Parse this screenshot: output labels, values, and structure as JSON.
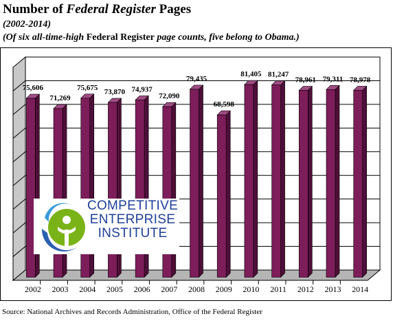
{
  "header": {
    "title_part1": "Number of ",
    "title_italic": "Federal Register",
    "title_part2": " Pages",
    "subtitle": "(2002-2014)",
    "note_part1": "(Of six all-time-high ",
    "note_upright": "Federal Register",
    "note_part2": " page counts, five belong to Obama.)"
  },
  "logo": {
    "line1": "COMPETITIVE",
    "line2": "ENTERPRISE",
    "line3": "INSTITUTE",
    "colors": {
      "blue": "#1f3f99",
      "green": "#7ab317",
      "cyan": "#3a9bd8"
    }
  },
  "source": "Source: National Archives and Records Administration, Office of the Federal Register",
  "chart_data": {
    "type": "bar",
    "categories": [
      "2002",
      "2003",
      "2004",
      "2005",
      "2006",
      "2007",
      "2008",
      "2009",
      "2010",
      "2011",
      "2012",
      "2013",
      "2014"
    ],
    "values": [
      75606,
      71269,
      75675,
      73870,
      74937,
      72090,
      79435,
      68598,
      81405,
      81247,
      78961,
      79311,
      78978
    ],
    "data_labels": [
      "75,606",
      "71,269",
      "75,675",
      "73,870",
      "74,937",
      "72,090",
      "79,435",
      "68,598",
      "81,405",
      "81,247",
      "78,961",
      "79,311",
      "78,978"
    ],
    "ylim": [
      0,
      90000
    ],
    "y_tick_count": 9,
    "grid": true,
    "style": "3d",
    "colors": {
      "bar_front": "#7d1d5a",
      "bar_side": "#4e0f38",
      "bar_top": "#a14c84",
      "wall": "#ffffff",
      "floor": "#b5b5b5"
    }
  }
}
